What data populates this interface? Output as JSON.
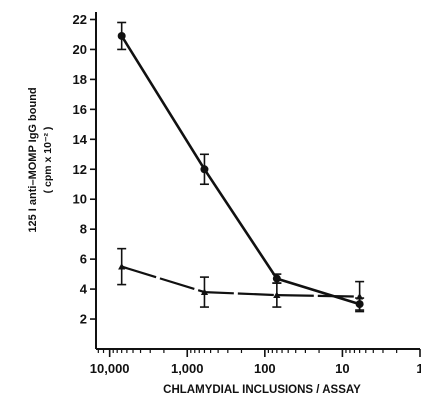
{
  "chart_data": {
    "type": "line",
    "xlabel": "CHLAMYDIAL INCLUSIONS / ASSAY",
    "ylabel_line1": "125 I anti–MOMP IgG bound",
    "ylabel_line2": "( cpm x 10⁻² )",
    "xscale": "log",
    "x_reversed": true,
    "xlim": [
      15000,
      1
    ],
    "ylim": [
      0,
      22.5
    ],
    "x_ticks": [
      10000,
      1000,
      100,
      10,
      1
    ],
    "x_tick_labels": [
      "10,000",
      "1,000",
      "100",
      "10",
      "1"
    ],
    "y_ticks": [
      2,
      4,
      6,
      8,
      10,
      12,
      14,
      16,
      18,
      20,
      22
    ],
    "y_tick_labels": [
      "2",
      "4",
      "6",
      "8",
      "10",
      "12",
      "14",
      "16",
      "18",
      "20",
      "22"
    ],
    "grid": false,
    "series": [
      {
        "marker": "circle",
        "line_style": "solid",
        "points": [
          {
            "x": 7000,
            "y": 20.9,
            "err": 0.9
          },
          {
            "x": 600,
            "y": 12.0,
            "err": 1.0
          },
          {
            "x": 70,
            "y": 4.7,
            "err": 0.3
          },
          {
            "x": 6,
            "y": 3.0,
            "err": 0.4
          }
        ]
      },
      {
        "marker": "triangle",
        "line_style": "dashed",
        "points": [
          {
            "x": 7000,
            "y": 5.5,
            "err": 1.2
          },
          {
            "x": 600,
            "y": 3.8,
            "err": 1.0
          },
          {
            "x": 70,
            "y": 3.6,
            "err": 0.8
          },
          {
            "x": 6,
            "y": 3.5,
            "err": 1.0
          }
        ]
      }
    ]
  }
}
